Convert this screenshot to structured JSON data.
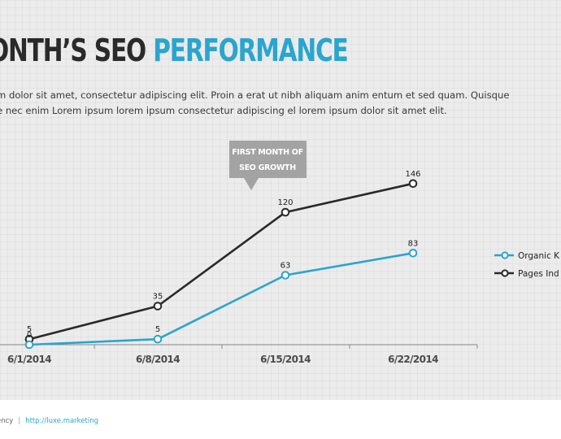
{
  "slide": {
    "title_part1": "ONTH’S SEO",
    "title_part2": "PERFORMANCE",
    "body_line1": "m dolor sit amet, consectetur adipiscing elit. Proin a erat ut nibh aliquam anim entum et sed quam. Quisque",
    "body_line2": "e nec enim Lorem ipsum lorem ipsum consectetur adipiscing el lorem ipsum dolor sit amet elit."
  },
  "callout": {
    "line1": "FIRST MONTH OF",
    "line2": "SEO GROWTH",
    "color": "#a3a3a3"
  },
  "colors": {
    "accent": "#2aa5cf",
    "dark": "#2a2a2a",
    "axis": "#8a8a8a"
  },
  "chart_data": {
    "type": "line",
    "categories": [
      "6/1/2014",
      "6/8/2014",
      "6/15/2014",
      "6/22/2014"
    ],
    "series": [
      {
        "name": "Organic K",
        "values": [
          0,
          5,
          63,
          83
        ],
        "color": "#2aa5cf"
      },
      {
        "name": "Pages Ind",
        "values": [
          5,
          35,
          120,
          146
        ],
        "color": "#2a2a2a"
      }
    ],
    "ylim": [
      0,
      165
    ],
    "grid": false,
    "legend": "right",
    "data_labels": true
  },
  "footer": {
    "agency": "ency",
    "url": "http://luxe.marketing"
  }
}
